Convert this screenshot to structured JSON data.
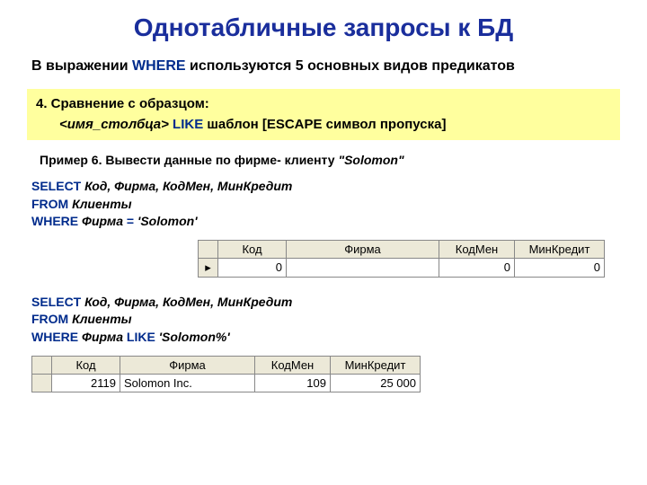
{
  "colors": {
    "title": "#1a2e9c",
    "keyword": "#002b8c",
    "highlight_bg": "#ffff9e",
    "table_header_bg": "#ece9d8",
    "table_border": "#888888"
  },
  "title": "Однотабличные запросы к БД",
  "subtitle_prefix": "В выражении ",
  "subtitle_kw": "WHERE",
  "subtitle_suffix": " используются 5 основных видов предикатов",
  "highlight": {
    "line1": "4. Сравнение с образцом:",
    "col_tpl": "<имя_столбца>",
    "like": " LIKE ",
    "rest": " шаблон [ESCAPE символ пропуска]"
  },
  "example_label_prefix": "Пример 6. Вывести данные по фирме- клиенту ",
  "example_label_italic": "\"Solomon\"",
  "sql1": {
    "select": "SELECT",
    "select_rest": " Код, Фирма, КодМен, МинКредит",
    "from": "FROM",
    "from_rest": " Клиенты",
    "where": "WHERE",
    "where_field": " Фирма ",
    "eq": "= ",
    "where_val": "'Solomon'"
  },
  "sql2": {
    "select": "SELECT",
    "select_rest": " Код, Фирма, КодМен, МинКредит",
    "from": "FROM",
    "from_rest": " Клиенты",
    "where": "WHERE",
    "where_field": " Фирма ",
    "like": "LIKE ",
    "where_val": "'Solomon%'"
  },
  "table1": {
    "cols": {
      "marker": "",
      "c1": "Код",
      "c2": "Фирма",
      "c3": "КодМен",
      "c4": "МинКредит"
    },
    "widths": {
      "marker": 22,
      "c1": 76,
      "c2": 170,
      "c3": 84,
      "c4": 100
    },
    "row": {
      "marker": "▸",
      "c1": "0",
      "c2": "",
      "c3": "0",
      "c4": "0"
    }
  },
  "table2": {
    "cols": {
      "marker": "",
      "c1": "Код",
      "c2": "Фирма",
      "c3": "КодМен",
      "c4": "МинКредит"
    },
    "widths": {
      "marker": 22,
      "c1": 76,
      "c2": 150,
      "c3": 84,
      "c4": 100
    },
    "row": {
      "marker": "",
      "c1": "2119",
      "c2": "Solomon Inc.",
      "c3": "109",
      "c4": "25 000"
    }
  }
}
